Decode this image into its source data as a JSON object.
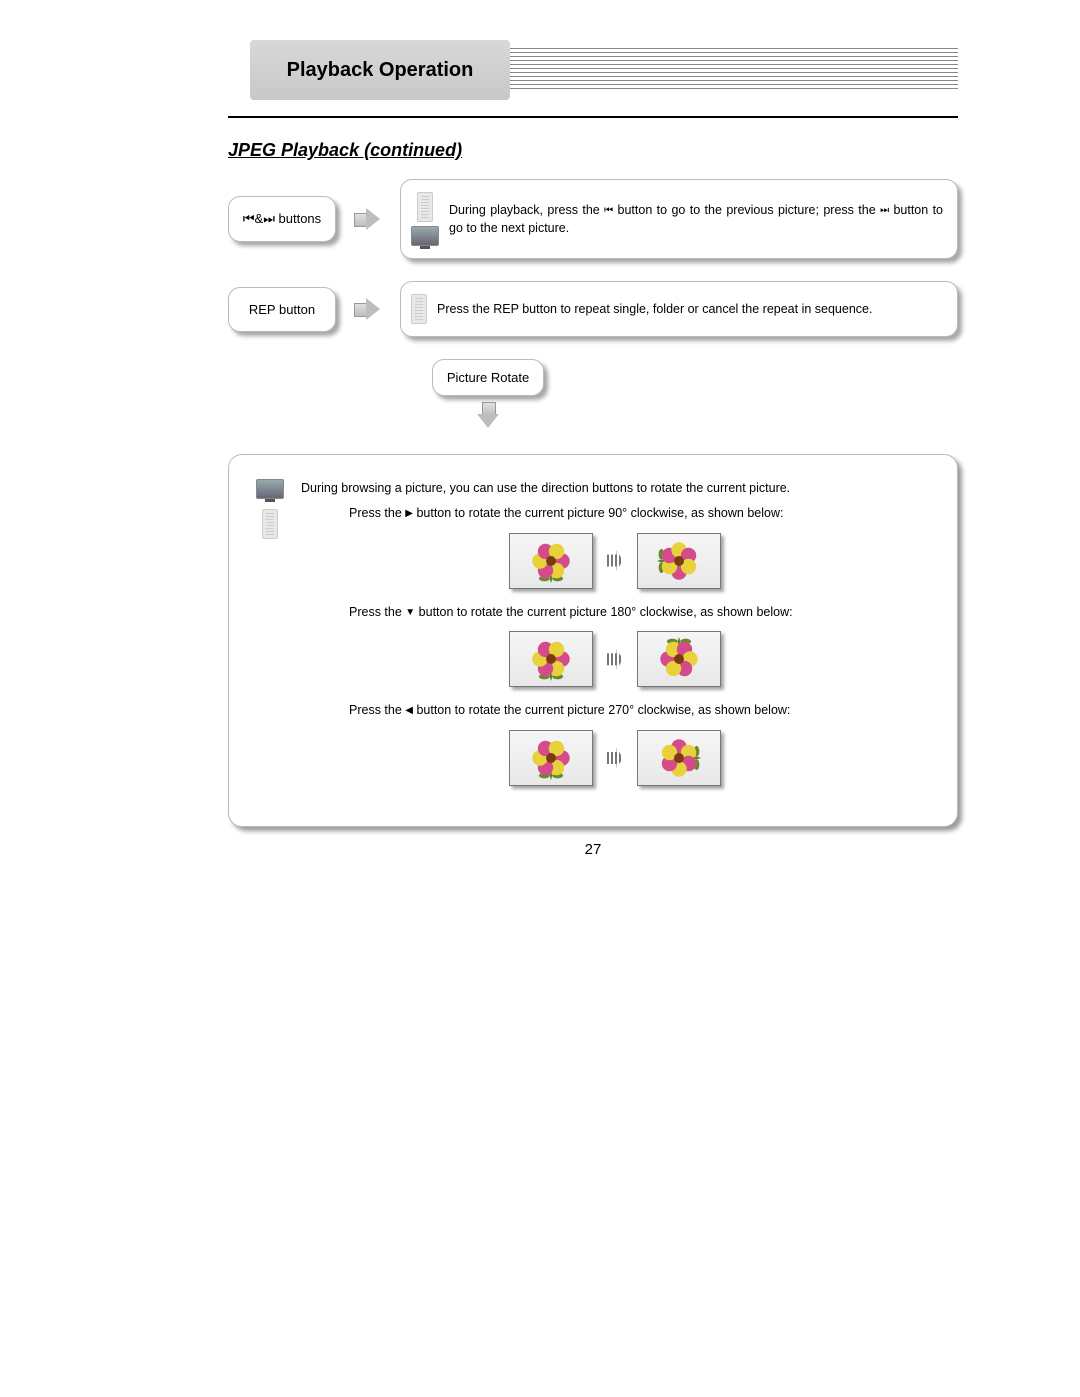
{
  "header": {
    "title": "Playback Operation"
  },
  "section": {
    "title": "JPEG Playback (continued)"
  },
  "rows": [
    {
      "label_prefix_icon": "⏮",
      "label_mid": "&",
      "label_suffix_icon": "⏭",
      "label_tail": " buttons",
      "text_before": "During playback, press the ",
      "icon1": "⏮",
      "text_mid": " button to go to the previous picture; press the ",
      "icon2": "⏭",
      "text_after": " button to go to the next picture.",
      "show_tv": true
    },
    {
      "label": "REP button",
      "text": "Press the REP button to repeat single, folder or cancel the repeat in sequence.",
      "show_tv": false
    }
  ],
  "rotate": {
    "pill": "Picture Rotate",
    "intro": "During browsing a picture, you can use the direction buttons to rotate the current picture.",
    "steps": [
      {
        "pre": "Press the ",
        "icon": "▶",
        "post": " button to rotate the current picture 90° clockwise, as shown below:",
        "angle": 90
      },
      {
        "pre": "Press the ",
        "icon": "▼",
        "post": " button to rotate the current picture 180° clockwise, as shown below:",
        "angle": 180
      },
      {
        "pre": "Press the ",
        "icon": "◀",
        "post": " button to rotate the current picture 270° clockwise, as shown below:",
        "angle": 270
      }
    ]
  },
  "page_number": "27",
  "colors": {
    "petal_pink": "#d54a8a",
    "petal_yellow": "#e8d23c",
    "flower_center": "#7a3b12",
    "stem": "#5a7a2a",
    "leaf": "#6a8a2a"
  }
}
